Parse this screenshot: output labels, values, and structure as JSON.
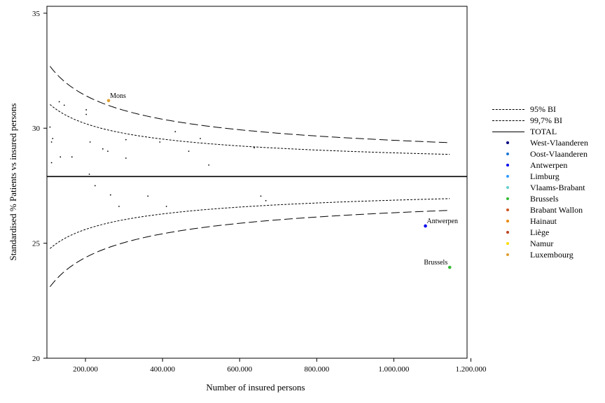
{
  "chart_data": {
    "type": "scatter",
    "title": "",
    "xlabel": "Number of insured persons",
    "ylabel": "Standardised % Patients vs insured persons",
    "xlim": [
      100000,
      1190000
    ],
    "ylim": [
      20,
      35.3
    ],
    "x_ticks": [
      200000,
      400000,
      600000,
      800000,
      1000000,
      1200000
    ],
    "x_tick_labels": [
      "200.000",
      "400.000",
      "600.000",
      "800.000",
      "1.000.000",
      "1.200.000"
    ],
    "y_ticks": [
      20,
      25,
      30,
      35
    ],
    "y_tick_labels": [
      "20",
      "25",
      "30",
      "35"
    ],
    "grid": false,
    "legend_position": "right",
    "total_value": 27.9,
    "limit_curves": [
      {
        "name": "95% BI",
        "style": "dotted",
        "z": 1.96
      },
      {
        "name": "99,7% BI",
        "style": "dashed",
        "z": 3
      }
    ],
    "curve_fit": {
      "mean": 27.9,
      "k": 525,
      "x_min": 108000,
      "x_max": 1145000
    },
    "total_line": {
      "name": "TOTAL",
      "style": "solid"
    },
    "regions": [
      {
        "name": "West-Vlaanderen",
        "color": "#000080"
      },
      {
        "name": "Oost-Vlaanderen",
        "color": "#1f77d4"
      },
      {
        "name": "Antwerpen",
        "color": "#0000ee"
      },
      {
        "name": "Limburg",
        "color": "#3399ff"
      },
      {
        "name": "Vlaams-Brabant",
        "color": "#66cccc"
      },
      {
        "name": "Brussels",
        "color": "#33bb33"
      },
      {
        "name": "Brabant Wallon",
        "color": "#cc5522"
      },
      {
        "name": "Hainaut",
        "color": "#ee8800"
      },
      {
        "name": "Liège",
        "color": "#bb4422"
      },
      {
        "name": "Namur",
        "color": "#ffdd00"
      },
      {
        "name": "Luxembourg",
        "color": "#e0a030"
      }
    ],
    "labeled_points": [
      {
        "label": "Mons",
        "x": 260000,
        "y": 31.2,
        "color": "#e0a030",
        "anchor": "right"
      },
      {
        "label": "Antwerpen",
        "x": 1082000,
        "y": 25.75,
        "color": "#0000ee",
        "anchor": "right"
      },
      {
        "label": "Brussels",
        "x": 1145000,
        "y": 23.95,
        "color": "#33bb33",
        "anchor": "left"
      }
    ],
    "points": [
      {
        "x": 108000,
        "y": 30.05
      },
      {
        "x": 112000,
        "y": 29.4
      },
      {
        "x": 115000,
        "y": 29.55
      },
      {
        "x": 112000,
        "y": 28.5
      },
      {
        "x": 132000,
        "y": 31.15
      },
      {
        "x": 145000,
        "y": 31.0
      },
      {
        "x": 135000,
        "y": 28.75
      },
      {
        "x": 165000,
        "y": 28.75
      },
      {
        "x": 202000,
        "y": 30.8
      },
      {
        "x": 202000,
        "y": 30.6
      },
      {
        "x": 212000,
        "y": 29.4
      },
      {
        "x": 245000,
        "y": 29.1
      },
      {
        "x": 258000,
        "y": 29.0
      },
      {
        "x": 210000,
        "y": 28.0
      },
      {
        "x": 225000,
        "y": 27.5
      },
      {
        "x": 265000,
        "y": 27.1
      },
      {
        "x": 287000,
        "y": 26.6
      },
      {
        "x": 305000,
        "y": 29.5
      },
      {
        "x": 305000,
        "y": 28.7
      },
      {
        "x": 362000,
        "y": 27.05
      },
      {
        "x": 393000,
        "y": 29.4
      },
      {
        "x": 410000,
        "y": 26.6
      },
      {
        "x": 433000,
        "y": 29.85
      },
      {
        "x": 468000,
        "y": 29.0
      },
      {
        "x": 498000,
        "y": 29.55
      },
      {
        "x": 520000,
        "y": 28.4
      },
      {
        "x": 638000,
        "y": 29.15
      },
      {
        "x": 655000,
        "y": 27.05
      },
      {
        "x": 668000,
        "y": 26.85
      }
    ]
  }
}
